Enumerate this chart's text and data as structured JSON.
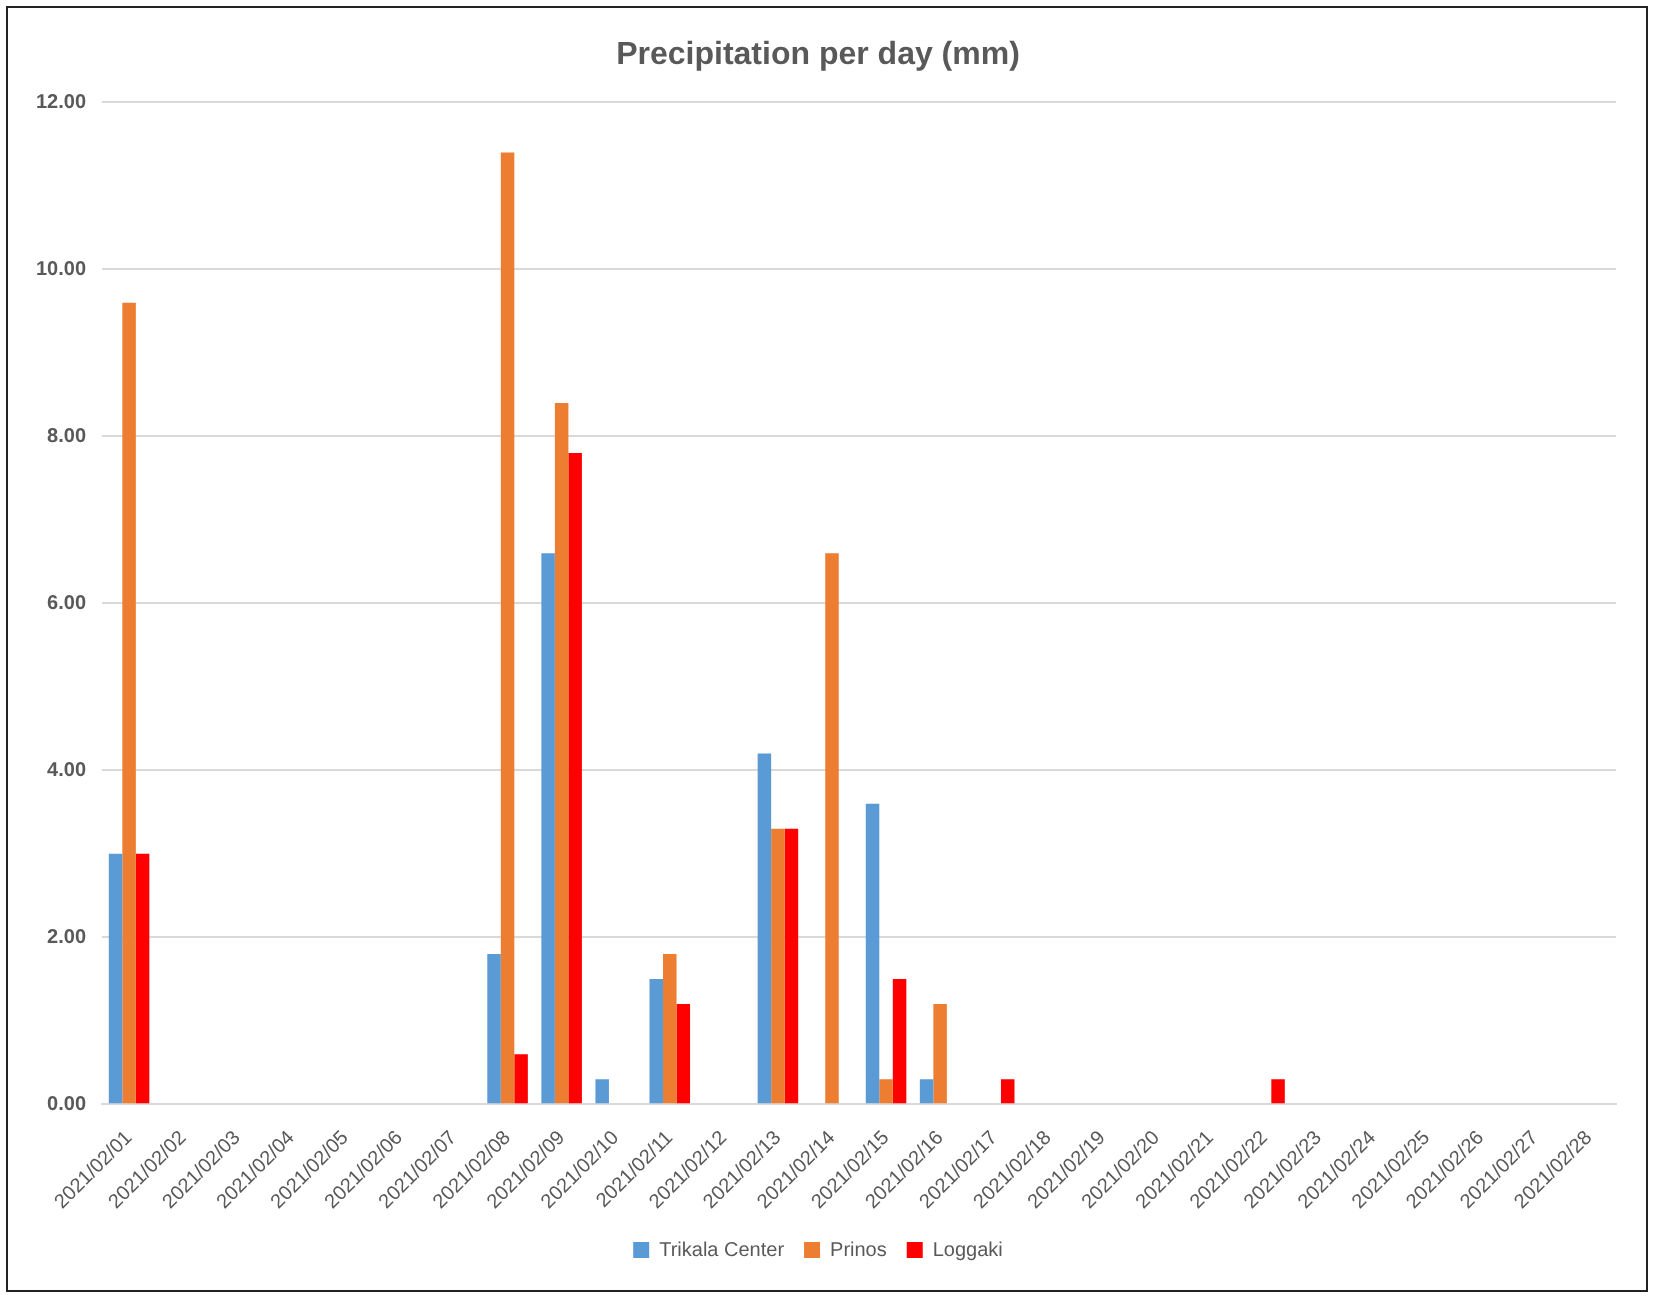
{
  "chart_data": {
    "type": "bar",
    "title": "Precipitation per day (mm)",
    "categories": [
      "2021/02/01",
      "2021/02/02",
      "2021/02/03",
      "2021/02/04",
      "2021/02/05",
      "2021/02/06",
      "2021/02/07",
      "2021/02/08",
      "2021/02/09",
      "2021/02/10",
      "2021/02/11",
      "2021/02/12",
      "2021/02/13",
      "2021/02/14",
      "2021/02/15",
      "2021/02/16",
      "2021/02/17",
      "2021/02/18",
      "2021/02/19",
      "2021/02/20",
      "2021/02/21",
      "2021/02/22",
      "2021/02/23",
      "2021/02/24",
      "2021/02/25",
      "2021/02/26",
      "2021/02/27",
      "2021/02/28"
    ],
    "series": [
      {
        "name": "Trikala Center",
        "color": "#5b9bd5",
        "values": [
          3.0,
          0,
          0,
          0,
          0,
          0,
          0,
          1.8,
          6.6,
          0.3,
          1.5,
          0,
          4.2,
          0,
          3.6,
          0.3,
          0,
          0,
          0,
          0,
          0,
          0,
          0,
          0,
          0,
          0,
          0,
          0
        ]
      },
      {
        "name": "Prinos",
        "color": "#ed7d31",
        "values": [
          9.6,
          0,
          0,
          0,
          0,
          0,
          0,
          11.4,
          8.4,
          0,
          1.8,
          0,
          3.3,
          6.6,
          0.3,
          1.2,
          0,
          0,
          0,
          0,
          0,
          0,
          0,
          0,
          0,
          0,
          0,
          0
        ]
      },
      {
        "name": "Loggaki",
        "color": "#ff0000",
        "values": [
          3.0,
          0,
          0,
          0,
          0,
          0,
          0,
          0.6,
          7.8,
          0,
          1.2,
          0,
          3.3,
          0,
          1.5,
          0,
          0.3,
          0,
          0,
          0,
          0,
          0.3,
          0,
          0,
          0,
          0,
          0,
          0
        ]
      }
    ],
    "ylim": [
      0,
      12
    ],
    "yticks": [
      {
        "value": 0,
        "label": "0.00"
      },
      {
        "value": 2,
        "label": "2.00"
      },
      {
        "value": 4,
        "label": "4.00"
      },
      {
        "value": 6,
        "label": "6.00"
      },
      {
        "value": 8,
        "label": "8.00"
      },
      {
        "value": 10,
        "label": "10.00"
      },
      {
        "value": 12,
        "label": "12.00"
      }
    ],
    "grid": "y",
    "legend": "bottom"
  }
}
